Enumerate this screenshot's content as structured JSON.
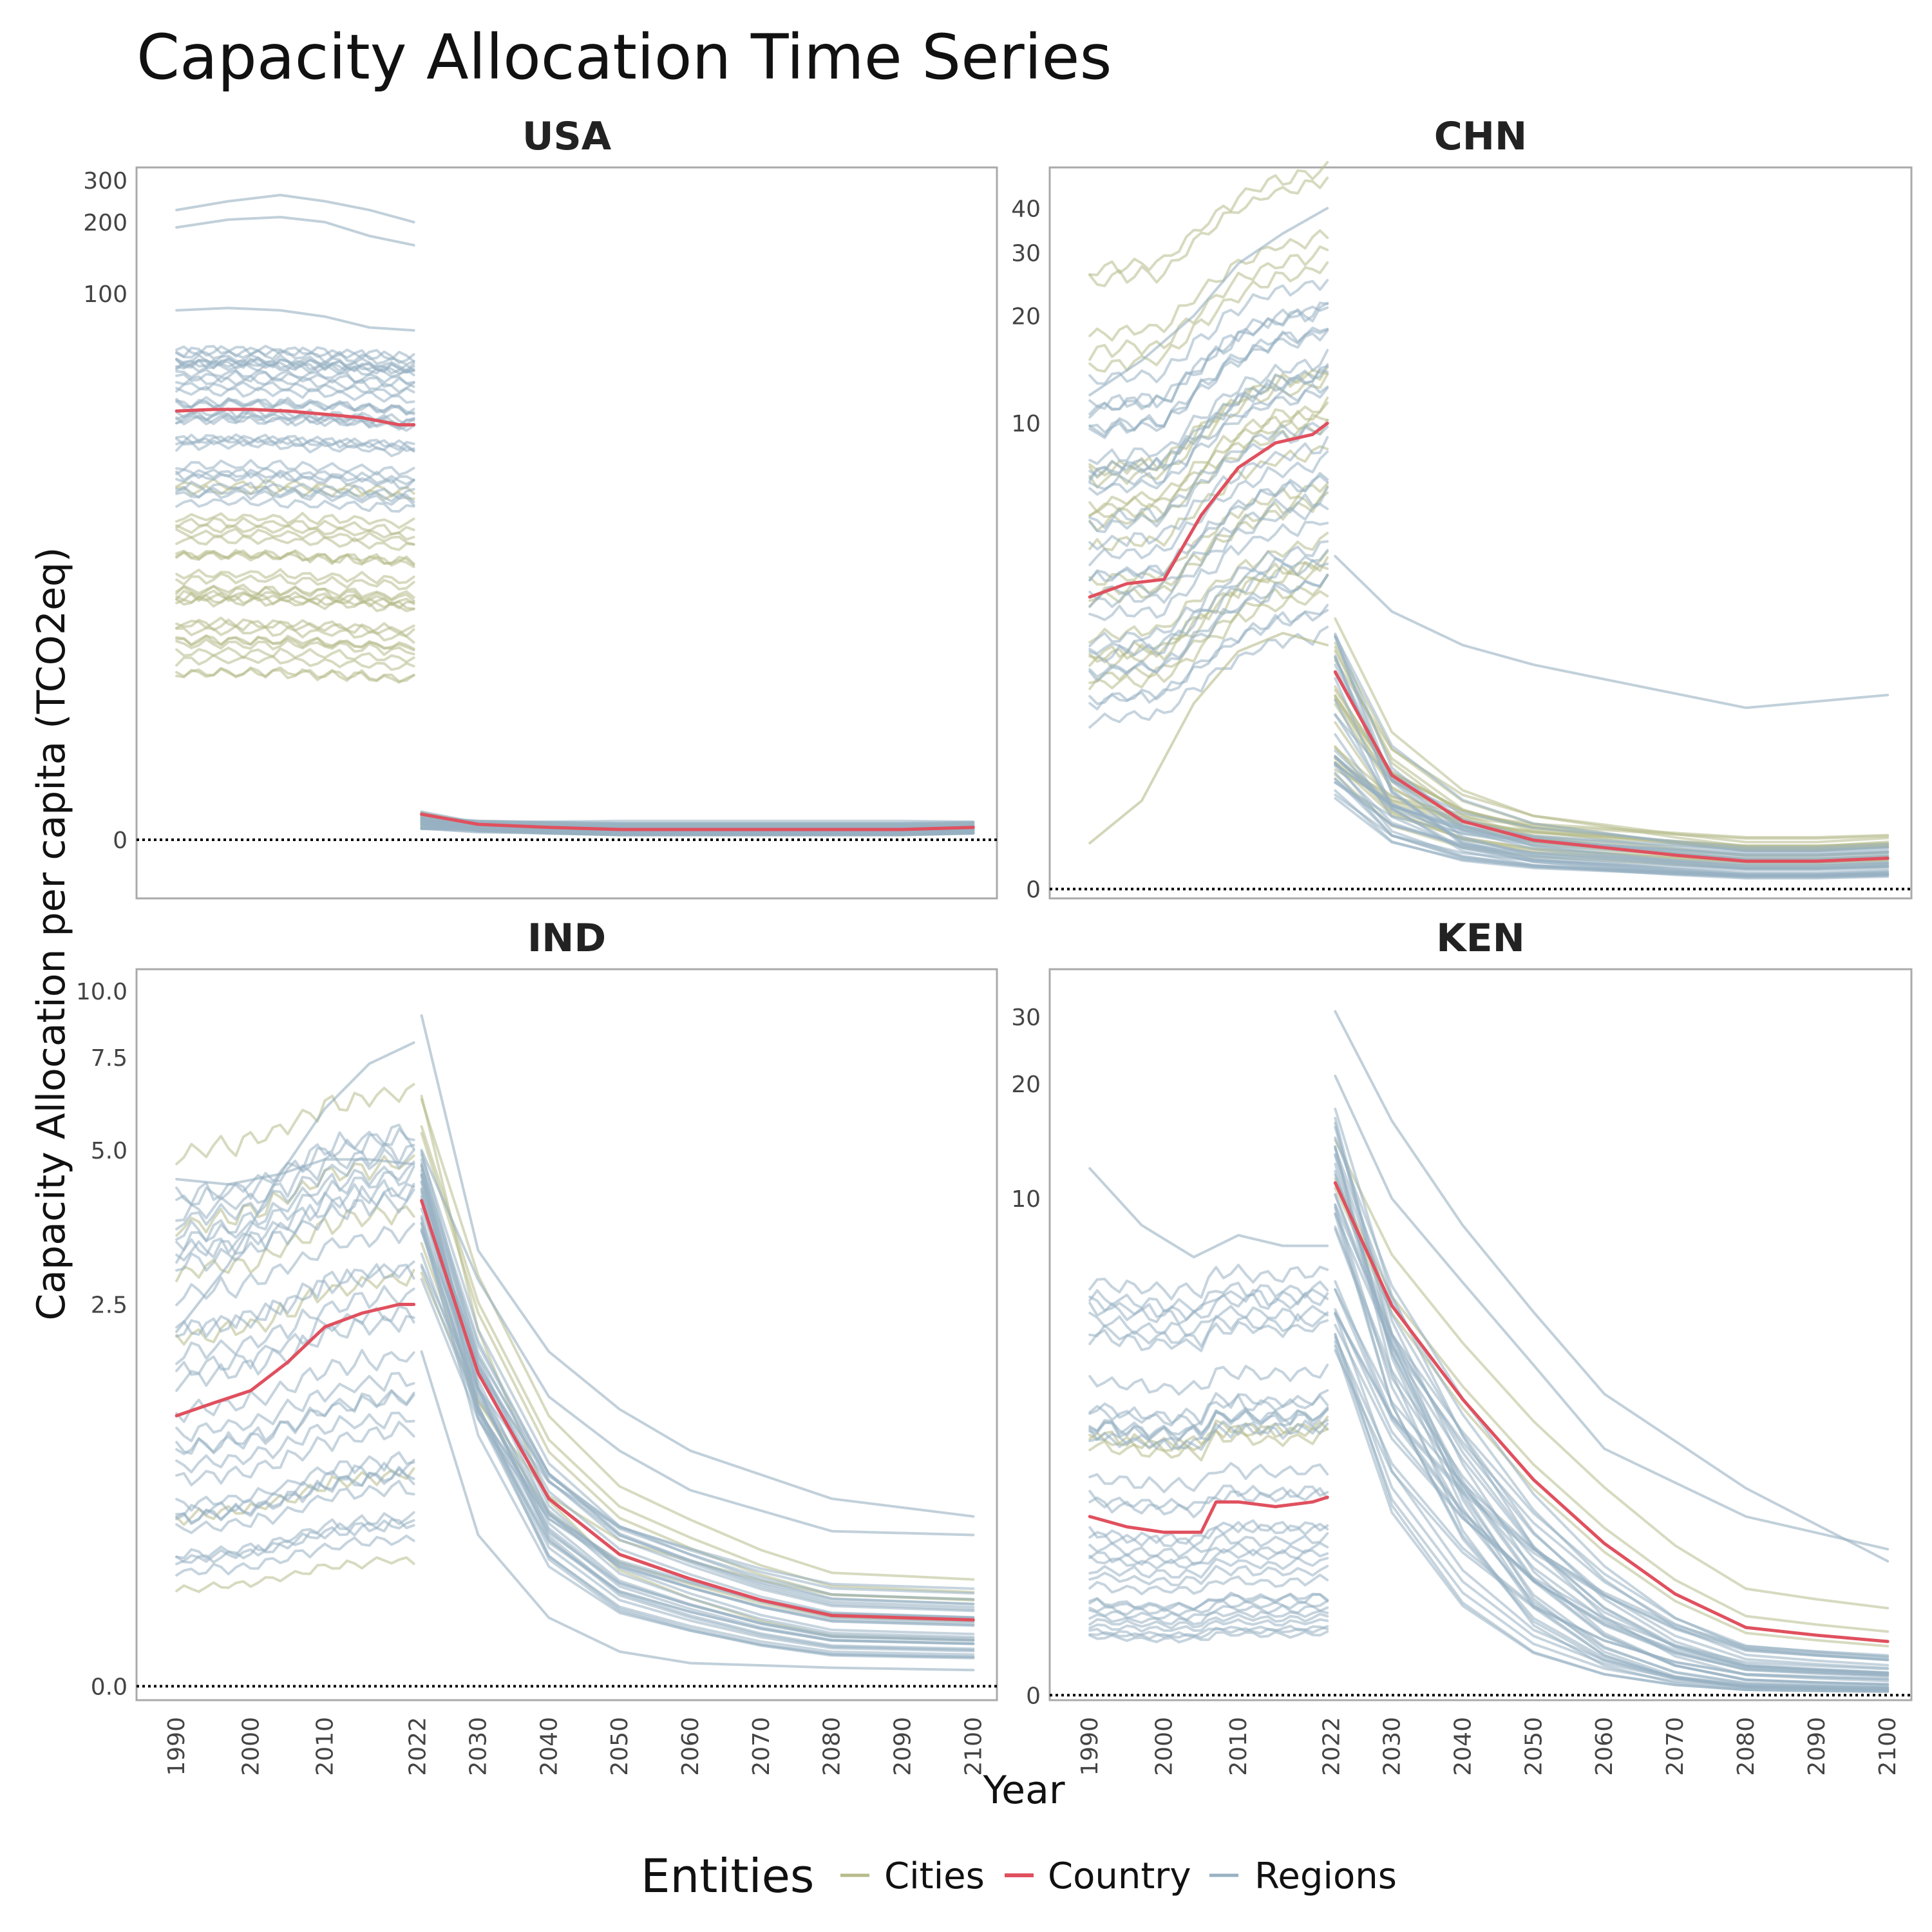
{
  "title": "Capacity Allocation Time Series",
  "colors": {
    "Cities": "#b7bb8a",
    "Country": "#e0505e",
    "Regions": "#98b1c2"
  },
  "chart_data": {
    "type": "line",
    "title": "Capacity Allocation Time Series",
    "xlabel": "Year",
    "ylabel": "Capacity Allocation per capita (TCO2eq)",
    "y_scale": "pseudo-log",
    "grid": false,
    "legend": {
      "title": "Entities",
      "position": "bottom",
      "entries": [
        "Cities",
        "Country",
        "Regions"
      ]
    },
    "x_ticks": [
      1990,
      2000,
      2010,
      2022,
      2030,
      2040,
      2050,
      2060,
      2070,
      2080,
      2090,
      2100
    ],
    "x_tick_labels": [
      "1990",
      "2000",
      "2010",
      "2022",
      "2030",
      "2040",
      "2050",
      "2060",
      "2070",
      "2080",
      "2090",
      "2100"
    ],
    "facets": [
      {
        "name": "USA",
        "y_ticks": [
          0,
          100,
          200,
          300
        ],
        "y_tick_labels": [
          "0",
          "100",
          "200",
          "300"
        ],
        "ylim": [
          -0.6,
          340
        ],
        "country": {
          "hist_x": [
            1990,
            1995,
            2000,
            2005,
            2010,
            2015,
            2020,
            2022
          ],
          "hist_y": [
            32,
            32.5,
            32.5,
            32,
            31,
            30,
            28,
            28
          ],
          "proj_x": [
            2022,
            2030,
            2040,
            2050,
            2060,
            2070,
            2080,
            2090,
            2100
          ],
          "proj_y": [
            0.25,
            0.15,
            0.12,
            0.1,
            0.1,
            0.1,
            0.1,
            0.1,
            0.12
          ]
        },
        "groups": [
          {
            "entity": "Cities",
            "count": 28,
            "hist": [
              2.2,
              16
            ],
            "proj": [
              0.14,
              0.28
            ],
            "end": [
              0.06,
              0.16
            ]
          },
          {
            "entity": "Regions",
            "count": 34,
            "hist": [
              12,
              60
            ],
            "proj": [
              0.1,
              0.3
            ],
            "end": [
              0.06,
              0.18
            ]
          }
        ],
        "extra_lines": [
          {
            "entity": "Regions",
            "hist": [
              225,
              245,
              260,
              245,
              225,
              200
            ],
            "proj": null
          },
          {
            "entity": "Regions",
            "hist": [
              190,
              205,
              210,
              200,
              175,
              160
            ],
            "proj": null
          },
          {
            "entity": "Regions",
            "hist": [
              85,
              87,
              85,
              80,
              72,
              70
            ],
            "proj": null
          }
        ]
      },
      {
        "name": "CHN",
        "y_ticks": [
          0,
          10,
          20,
          30,
          40
        ],
        "y_tick_labels": [
          "0",
          "10",
          "20",
          "30",
          "40"
        ],
        "ylim": [
          -0.06,
          52
        ],
        "country": {
          "hist_x": [
            1990,
            1995,
            2000,
            2005,
            2010,
            2015,
            2020,
            2022
          ],
          "hist_y": [
            3.2,
            3.5,
            3.6,
            5.5,
            7.5,
            8.8,
            9.3,
            10
          ],
          "proj_x": [
            2022,
            2030,
            2040,
            2050,
            2060,
            2070,
            2080,
            2090,
            2100
          ],
          "proj_y": [
            1.9,
            0.8,
            0.45,
            0.32,
            0.27,
            0.22,
            0.18,
            0.18,
            0.2
          ]
        },
        "groups": [
          {
            "entity": "Cities",
            "count": 22,
            "hist": [
              1.5,
              30
            ],
            "proj": [
              0.8,
              2.8
            ],
            "end": [
              0.12,
              0.4
            ]
          },
          {
            "entity": "Regions",
            "count": 30,
            "hist": [
              1.3,
              14
            ],
            "proj": [
              0.6,
              2.5
            ],
            "end": [
              0.08,
              0.3
            ]
          }
        ],
        "extra_lines": [
          {
            "entity": "Regions",
            "hist": [
              12,
              15,
              20,
              28,
              34,
              40
            ],
            "proj": [
              4.2,
              2.9,
              2.3,
              2.0,
              1.8,
              1.45,
              1.6
            ]
          },
          {
            "entity": "Cities",
            "hist": [
              0.3,
              0.6,
              1.5,
              2.2,
              2.5,
              2.3
            ],
            "proj": null
          }
        ]
      },
      {
        "name": "IND",
        "y_ticks": [
          0,
          2.5,
          5,
          7.5,
          10
        ],
        "y_tick_labels": [
          "0.0",
          "2.5",
          "5.0",
          "7.5",
          "10.0"
        ],
        "ylim": [
          -0.06,
          11
        ],
        "country": {
          "hist_x": [
            1990,
            1995,
            2000,
            2005,
            2010,
            2015,
            2020,
            2022
          ],
          "hist_y": [
            1.45,
            1.55,
            1.65,
            1.9,
            2.25,
            2.4,
            2.5,
            2.5
          ],
          "proj_x": [
            2022,
            2030,
            2040,
            2050,
            2060,
            2070,
            2080,
            2090,
            2100
          ],
          "proj_y": [
            4.0,
            1.8,
            0.9,
            0.6,
            0.48,
            0.38,
            0.31,
            0.3,
            0.29
          ]
        },
        "groups": [
          {
            "entity": "Cities",
            "count": 6,
            "hist": [
              0.35,
              5
            ],
            "proj": [
              2.5,
              6.5
            ],
            "end": [
              0.2,
              0.6
            ]
          },
          {
            "entity": "Regions",
            "count": 30,
            "hist": [
              0.5,
              4.2
            ],
            "proj": [
              2.8,
              5
            ],
            "end": [
              0.12,
              0.45
            ]
          }
        ],
        "extra_lines": [
          {
            "entity": "Regions",
            "hist": [
              2.2,
              3.0,
              4.5,
              6.0,
              7.3,
              8.0
            ],
            "proj": [
              9.0,
              3.2,
              2.0,
              1.5,
              1.2,
              0.9,
              0.8
            ]
          },
          {
            "entity": "Regions",
            "hist": null,
            "proj": [
              2.0,
              0.7,
              0.3,
              0.15,
              0.1,
              0.08,
              0.07
            ]
          },
          {
            "entity": "Regions",
            "hist": [
              4.4,
              4.3,
              4.5,
              4.8,
              4.8,
              4.7
            ],
            "proj": [
              5.0,
              2.8,
              1.6,
              1.2,
              0.95,
              0.72,
              0.7
            ]
          }
        ]
      },
      {
        "name": "KEN",
        "y_ticks": [
          0,
          10,
          20,
          30
        ],
        "y_tick_labels": [
          "0",
          "10",
          "20",
          "30"
        ],
        "ylim": [
          -0.03,
          40
        ],
        "country": {
          "hist_x": [
            1990,
            1995,
            2000,
            2005,
            2007,
            2010,
            2015,
            2020,
            2022
          ],
          "hist_y": [
            1.3,
            1.2,
            1.15,
            1.15,
            1.45,
            1.45,
            1.4,
            1.45,
            1.5
          ],
          "proj_x": [
            2022,
            2030,
            2040,
            2050,
            2060,
            2070,
            2080,
            2090,
            2100
          ],
          "proj_y": [
            11,
            5.2,
            2.9,
            1.7,
            1.05,
            0.65,
            0.42,
            0.37,
            0.33
          ]
        },
        "groups": [
          {
            "entity": "Cities",
            "count": 3,
            "hist": [
              1.3,
              2.6
            ],
            "proj": [
              10,
              18
            ],
            "end": [
              0.3,
              0.55
            ]
          },
          {
            "entity": "Regions",
            "count": 36,
            "hist": [
              0.28,
              6.5
            ],
            "proj": [
              3.5,
              18
            ],
            "end": [
              0.02,
              0.25
            ]
          }
        ],
        "extra_lines": [
          {
            "entity": "Regions",
            "hist": [
              12,
              8.5,
              7.0,
              8.0,
              7.5,
              7.5
            ],
            "proj": [
              31,
              16,
              8.5,
              5.0,
              3.0,
              1.6,
              0.9
            ]
          },
          {
            "entity": "Regions",
            "hist": null,
            "proj": [
              21,
              10,
              6.0,
              3.6,
              2.1,
              1.3,
              1.0
            ]
          }
        ]
      }
    ]
  }
}
